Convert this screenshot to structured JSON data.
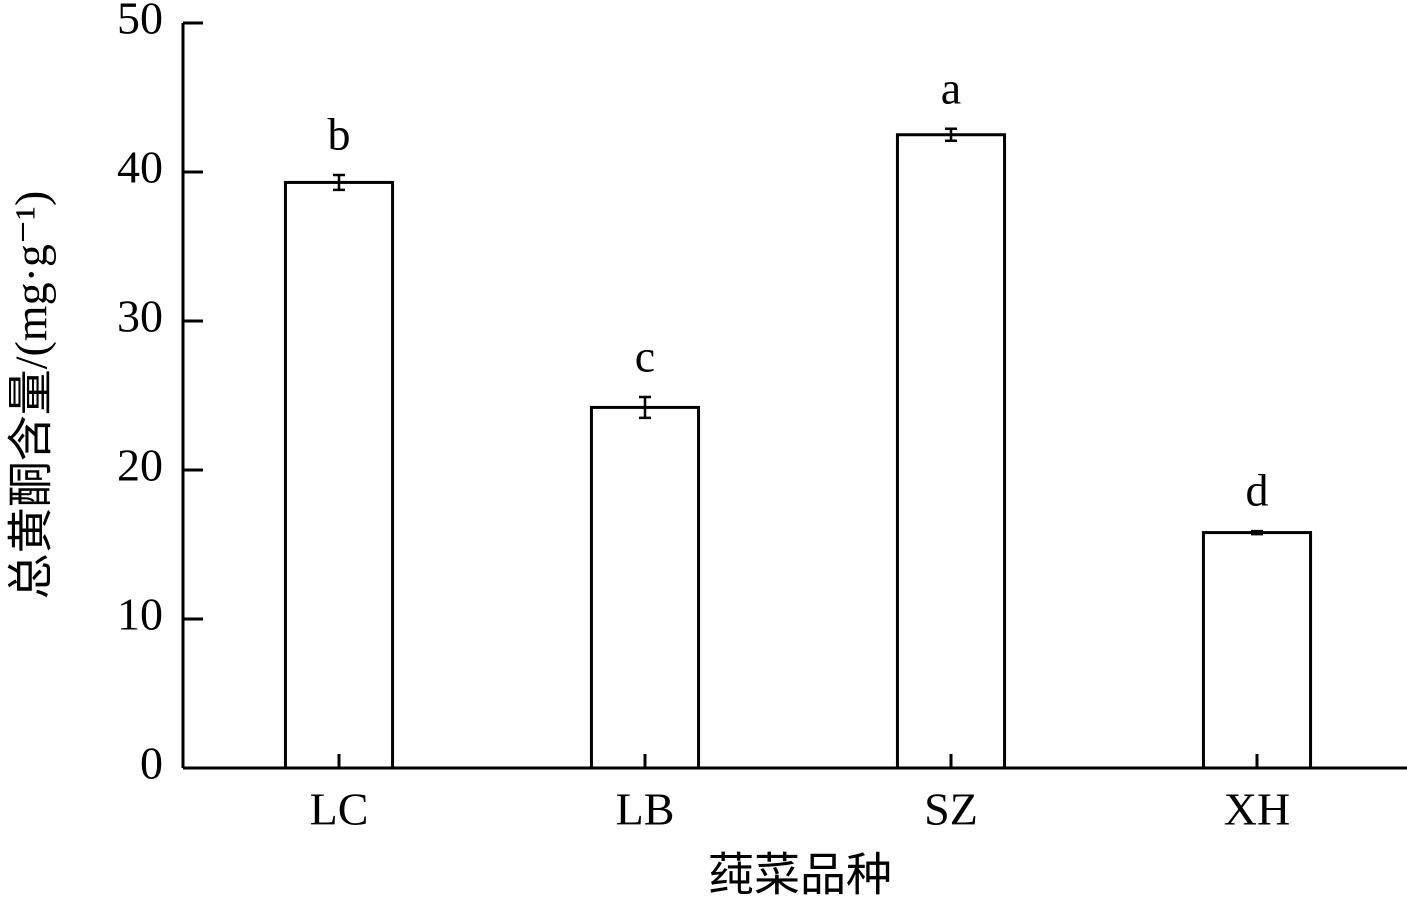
{
  "chart_data": {
    "type": "bar",
    "x_label": "莼菜品种",
    "y_label": "总黄酮含量/(mg·g⁻¹)",
    "categories": [
      "LC",
      "LB",
      "SZ",
      "XH"
    ],
    "values": [
      39.3,
      24.2,
      42.5,
      15.8
    ],
    "errors": [
      0.5,
      0.7,
      0.4,
      0.1
    ],
    "significance": [
      "b",
      "c",
      "a",
      "d"
    ],
    "color": "#ffffff",
    "ylim": [
      0,
      50
    ],
    "yticks": [
      0,
      10,
      20,
      30,
      40,
      50
    ],
    "grid": false
  }
}
